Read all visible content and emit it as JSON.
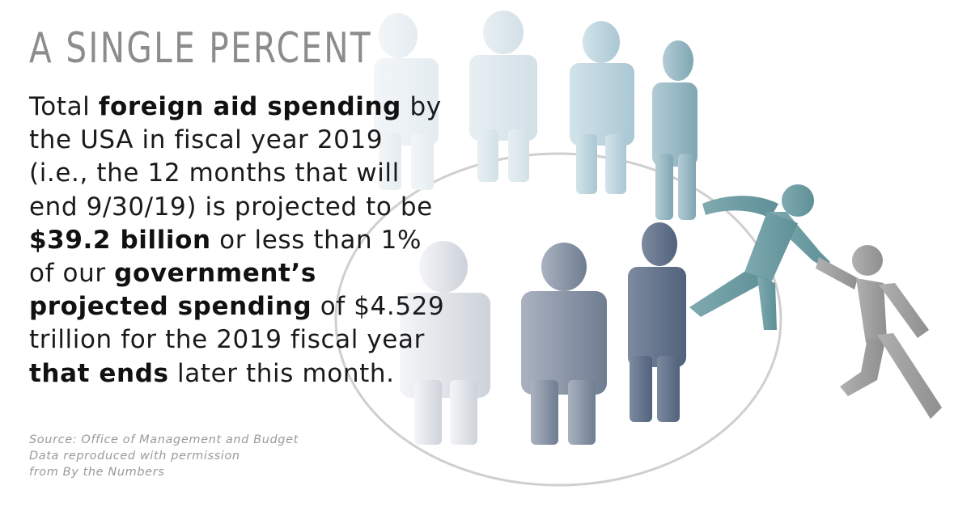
{
  "heading": "A SINGLE PERCENT",
  "body": {
    "t1": "Total ",
    "b1": "foreign aid spending",
    "t2": " by the USA in fiscal year 2019 (i.e., the 12 months that will end 9/30/19) is projected to be ",
    "b2": "$39.2 billion",
    "t3": " or less than 1% of our ",
    "b3": "government’s projected spending",
    "t4": " of $4.529 trillion for the 2019 fiscal year ",
    "b4": "that ends",
    "t5": " later this month."
  },
  "source": {
    "line1": "Source: Office of Management and Budget",
    "line2": "Data reproduced with permission",
    "line3": "from By the Numbers"
  },
  "colors": {
    "title": "#8c8c8c",
    "text": "#1a1a1a",
    "source": "#9a9a9a",
    "figures_light": "#dde7ee",
    "figures_teal": "#6f9ea6",
    "figures_slate": "#5b6a82",
    "helper_figure": "#9d9d9d"
  },
  "illustration": {
    "icon": "people-circle-helping-hand-illustration"
  }
}
